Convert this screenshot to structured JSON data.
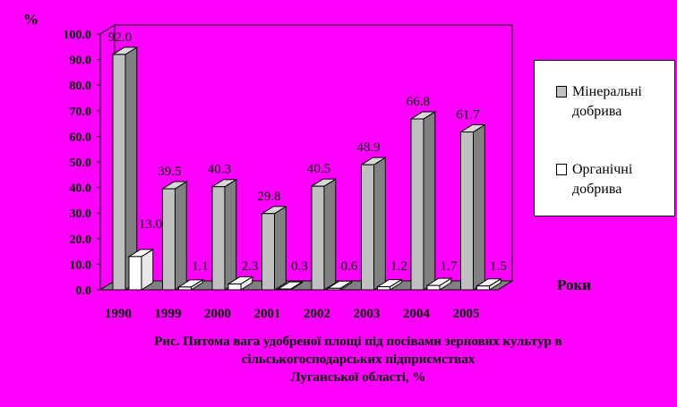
{
  "chart_data": {
    "type": "bar",
    "unit_label": "%",
    "xlabel": "Роки",
    "ylim": [
      0,
      100
    ],
    "yticks": [
      "0.0",
      "10.0",
      "20.0",
      "30.0",
      "40.0",
      "50.0",
      "60.0",
      "70.0",
      "80.0",
      "90.0",
      "100.0"
    ],
    "categories": [
      "1990",
      "1999",
      "2000",
      "2001",
      "2002",
      "2003",
      "2004",
      "2005"
    ],
    "series": [
      {
        "name": "Мінеральні добрива",
        "color": "#c0c0c0",
        "values": [
          92.0,
          39.5,
          40.3,
          29.8,
          40.5,
          48.9,
          66.8,
          61.7
        ],
        "labels": [
          "92.0",
          "39.5",
          "40.3",
          "29.8",
          "40.5",
          "48.9",
          "66.8",
          "61.7"
        ]
      },
      {
        "name": "Органічні добрива",
        "color": "#ffffff",
        "values": [
          13.0,
          1.1,
          2.3,
          0.3,
          0.6,
          1.2,
          1.7,
          1.5
        ],
        "labels": [
          "13.0",
          "1.1",
          "2.3",
          "0.3",
          "0.6",
          "1.2",
          "1.7",
          "1.5"
        ]
      }
    ],
    "legend": {
      "position": "right"
    },
    "caption": [
      "Рис. Питома вага удобреної площі під посівами зернових культур в",
      "сільськогосподарських підприємствах",
      "Луганської області, %"
    ]
  }
}
